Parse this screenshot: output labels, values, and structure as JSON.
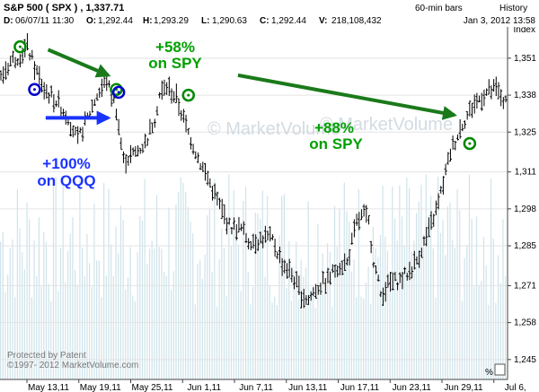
{
  "header": {
    "title": "S&P 500 ( SPX ) , 1,337.71",
    "interval": "60-min bars",
    "history_label": "History",
    "ohlc": [
      {
        "label": "D:",
        "value": "06/07/11 11:30"
      },
      {
        "label": "O:",
        "value": "1,292.44"
      },
      {
        "label": "H:",
        "value": "1,293.29"
      },
      {
        "label": "L:",
        "value": "1,290.63"
      },
      {
        "label": "C:",
        "value": "1,292.44"
      },
      {
        "label": "V:",
        "value": "218,108,432"
      }
    ],
    "timestamp": "Jan 3, 2012 13:58"
  },
  "footer": {
    "protected": "Protected by Patent",
    "copyright": "©1997- 2012 MarketVolume.com",
    "pct_button": "%",
    "watermark": "© MarketVolume"
  },
  "chart_data": {
    "type": "ohlc",
    "ylabel": "Index",
    "ylim": [
      1238,
      1362
    ],
    "y_ticks": [
      "1,351",
      "1,338",
      "1,325",
      "1,311",
      "1,298",
      "1,285",
      "1,271",
      "1,258",
      "1,245"
    ],
    "x_ticks": [
      "May 13,11",
      "May 19,11",
      "May 25,11",
      "Jun 1,11",
      "Jun 7,11",
      "Jun 13,11",
      "Jun 17,11",
      "Jun 23,11",
      "Jun 29,11",
      "Jul 6,"
    ],
    "price_path": [
      [
        0,
        1344
      ],
      [
        4,
        1350
      ],
      [
        8,
        1352
      ],
      [
        11,
        1355
      ],
      [
        14,
        1348
      ],
      [
        18,
        1340
      ],
      [
        23,
        1336
      ],
      [
        28,
        1330
      ],
      [
        32,
        1322
      ],
      [
        36,
        1330
      ],
      [
        40,
        1338
      ],
      [
        44,
        1343
      ],
      [
        48,
        1333
      ],
      [
        51,
        1315
      ],
      [
        55,
        1317
      ],
      [
        60,
        1321
      ],
      [
        64,
        1330
      ],
      [
        66,
        1338
      ],
      [
        69,
        1341
      ],
      [
        73,
        1337
      ],
      [
        77,
        1327
      ],
      [
        82,
        1316
      ],
      [
        87,
        1307
      ],
      [
        91,
        1299
      ],
      [
        95,
        1292
      ],
      [
        100,
        1291
      ],
      [
        103,
        1287
      ],
      [
        107,
        1287
      ],
      [
        110,
        1288
      ],
      [
        113,
        1287
      ],
      [
        117,
        1279
      ],
      [
        121,
        1275
      ],
      [
        125,
        1268
      ],
      [
        128,
        1266
      ],
      [
        131,
        1270
      ],
      [
        136,
        1273
      ],
      [
        140,
        1278
      ],
      [
        144,
        1279
      ],
      [
        148,
        1293
      ],
      [
        151,
        1296
      ],
      [
        153,
        1293
      ],
      [
        155,
        1280
      ],
      [
        158,
        1268
      ],
      [
        162,
        1272
      ],
      [
        166,
        1273
      ],
      [
        170,
        1276
      ],
      [
        173,
        1280
      ],
      [
        178,
        1290
      ],
      [
        182,
        1300
      ],
      [
        187,
        1318
      ],
      [
        192,
        1328
      ],
      [
        197,
        1335
      ],
      [
        202,
        1339
      ],
      [
        206,
        1340
      ],
      [
        210,
        1335
      ]
    ],
    "series_color": "#000000",
    "volume_color": "#cfe3ea",
    "annotations": [
      {
        "text": "+58%",
        "sub": "on SPY",
        "color": "#00a000"
      },
      {
        "text": "+100%",
        "sub": "on QQQ",
        "color": "#1a33ff"
      },
      {
        "text": "+88%",
        "sub": "on SPY",
        "color": "#00a000"
      }
    ],
    "markers": [
      {
        "t": 8,
        "price": 1355,
        "color": "#008800",
        "kind": "buy"
      },
      {
        "t": 14,
        "price": 1340,
        "color": "#0000cc",
        "kind": "blue"
      },
      {
        "t": 48,
        "price": 1340,
        "color": "#008800",
        "kind": "buy"
      },
      {
        "t": 49,
        "price": 1339,
        "color": "#0000cc",
        "kind": "blue"
      },
      {
        "t": 78,
        "price": 1338,
        "color": "#008800",
        "kind": "buy"
      },
      {
        "t": 195,
        "price": 1321,
        "color": "#008800",
        "kind": "buy"
      }
    ],
    "arrows": [
      {
        "from": [
          20,
          1354
        ],
        "to": [
          45,
          1345
        ],
        "color": "#1a7a1a"
      },
      {
        "from": [
          19,
          1330
        ],
        "to": [
          45,
          1330
        ],
        "color": "#1a33ff"
      },
      {
        "from": [
          99,
          1345
        ],
        "to": [
          189,
          1331
        ],
        "color": "#1a7a1a"
      }
    ],
    "grid": true,
    "legend": "none"
  }
}
